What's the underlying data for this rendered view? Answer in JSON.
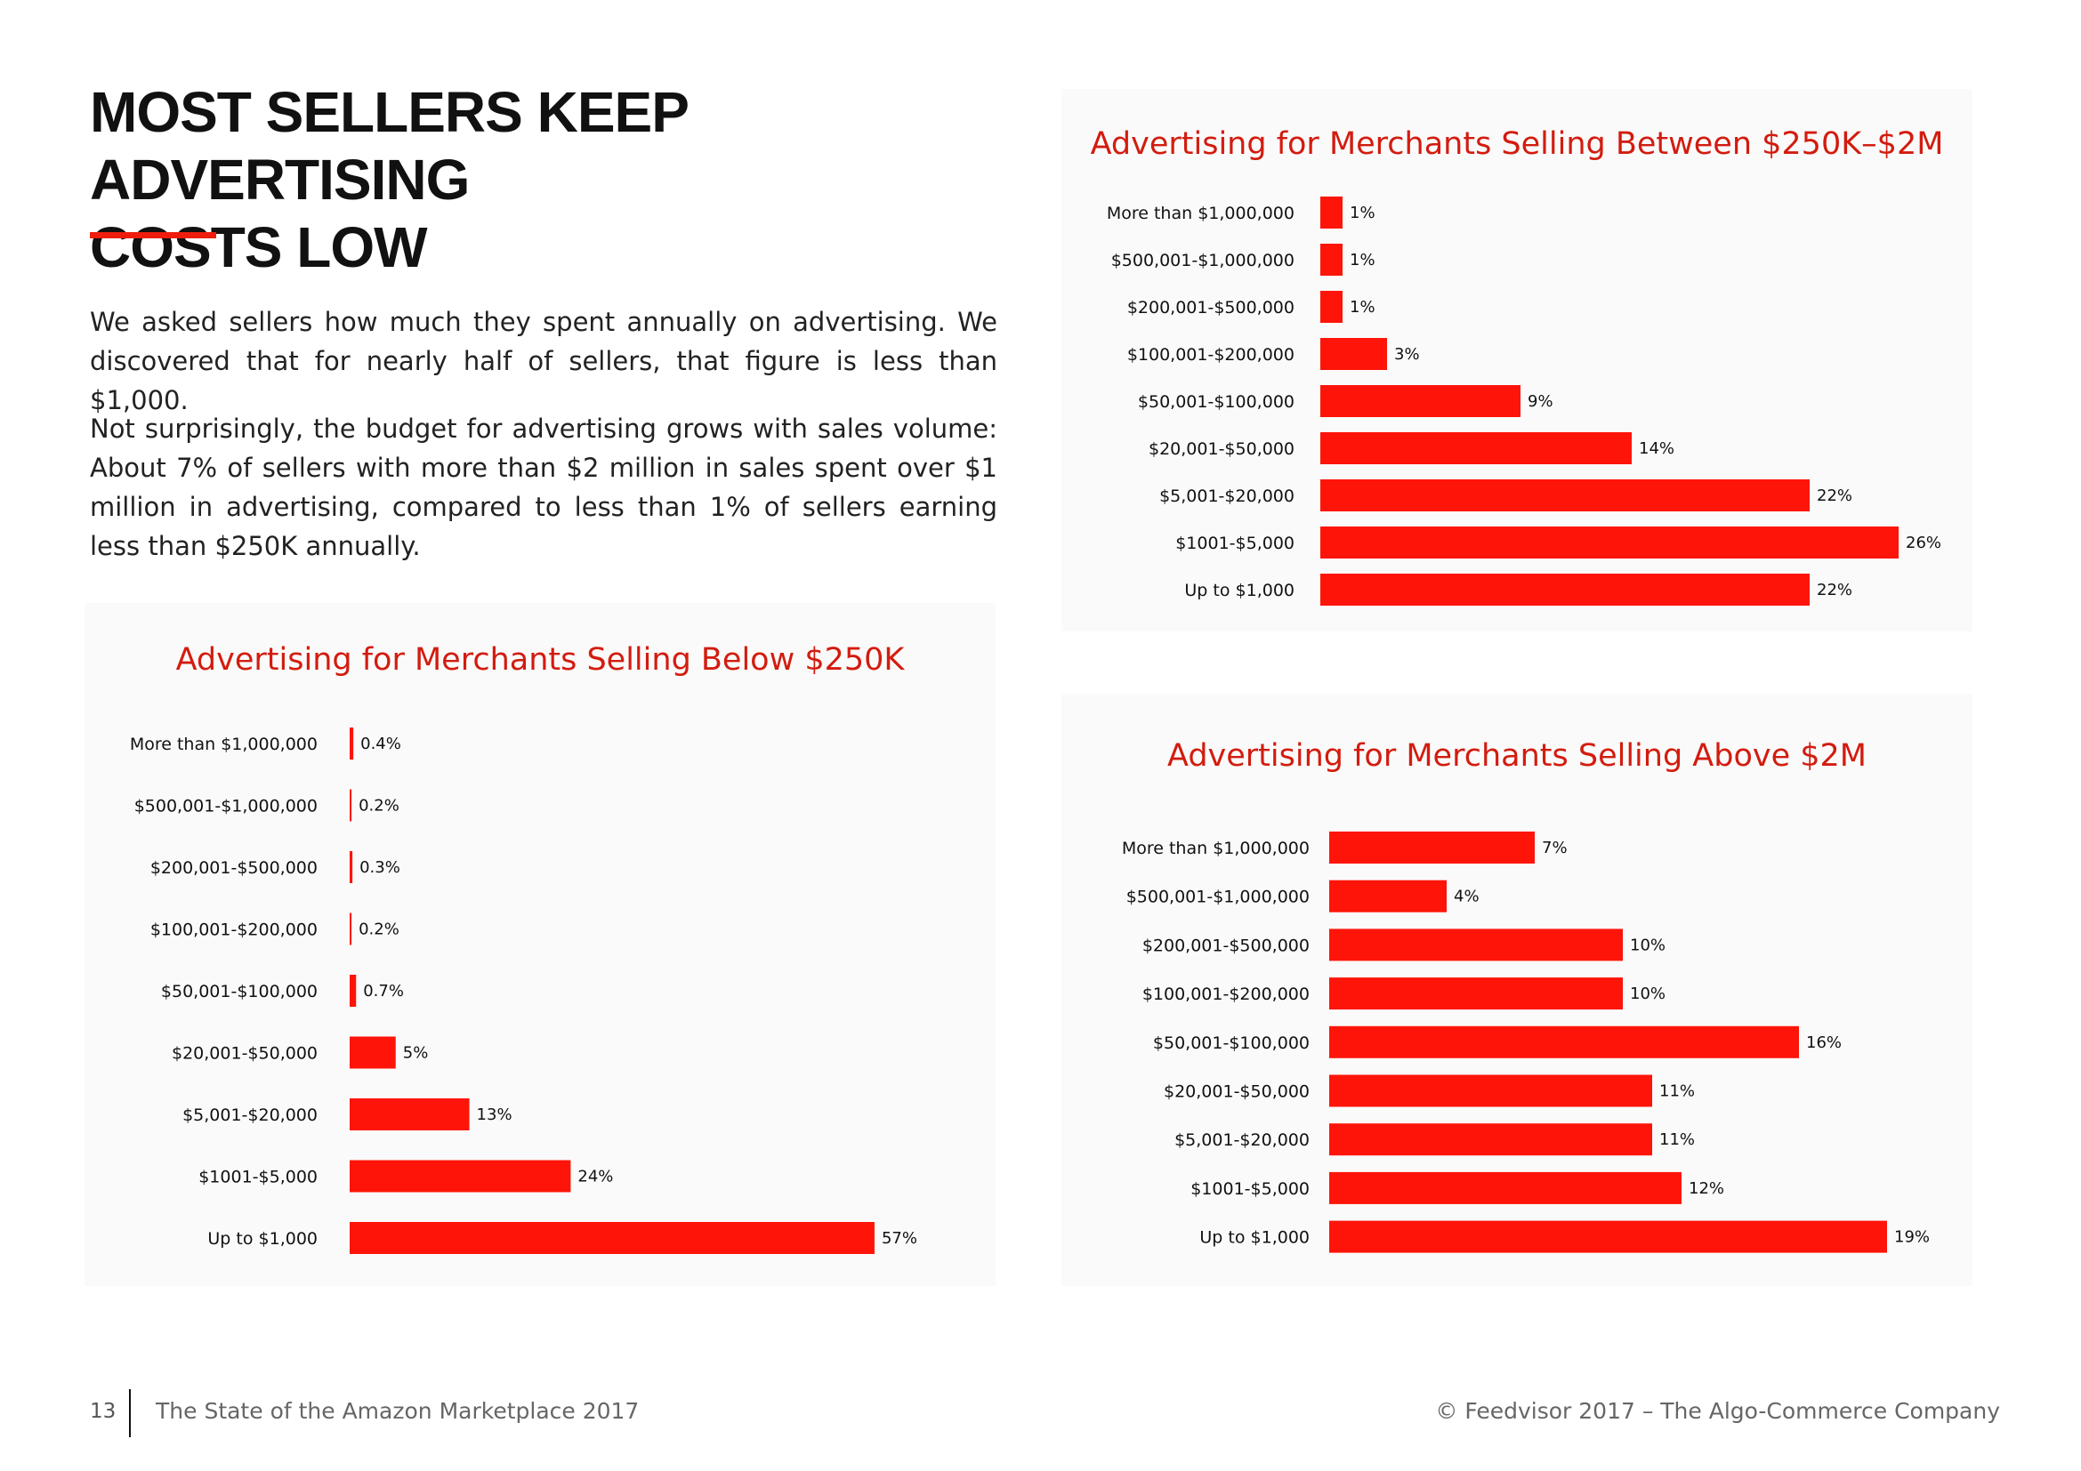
{
  "heading": {
    "line1": "MOST SELLERS KEEP ADVERTISING",
    "line2": "COSTS LOW"
  },
  "body": {
    "paragraph1": "We asked sellers how much they spent annually on advertising. We discovered that for nearly half of sellers, that figure is less than $1,000.",
    "paragraph2": "Not surprisingly, the budget for advertising grows with sales volume: About 7% of sellers with more than $2 million in sales spent over $1 million in advertising, compared to less than 1% of sellers earning less than $250K annually."
  },
  "colors": {
    "accent": "#ee1d0e",
    "bar": "#fe1409",
    "chart_title": "#d21c0f"
  },
  "chart_data": [
    {
      "id": "below",
      "type": "bar",
      "orientation": "horizontal",
      "title": "Advertising for Merchants Selling Below $250K",
      "categories": [
        "More than $1,000,000",
        "$500,001-$1,000,000",
        "$200,001-$500,000",
        "$100,001-$200,000",
        "$50,001-$100,000",
        "$20,001-$50,000",
        "$5,001-$20,000",
        "$1001-$5,000",
        "Up to $1,000"
      ],
      "values": [
        0.4,
        0.2,
        0.3,
        0.2,
        0.7,
        5,
        13,
        24,
        57
      ],
      "value_labels": [
        "0.4%",
        "0.2%",
        "0.3%",
        "0.2%",
        "0.7%",
        "5%",
        "13%",
        "24%",
        "57%"
      ]
    },
    {
      "id": "between",
      "type": "bar",
      "orientation": "horizontal",
      "title": "Advertising for Merchants Selling Between $250K–$2M",
      "categories": [
        "More than $1,000,000",
        "$500,001-$1,000,000",
        "$200,001-$500,000",
        "$100,001-$200,000",
        "$50,001-$100,000",
        "$20,001-$50,000",
        "$5,001-$20,000",
        "$1001-$5,000",
        "Up to $1,000"
      ],
      "values": [
        1,
        1,
        1,
        3,
        9,
        14,
        22,
        26,
        22
      ],
      "value_labels": [
        "1%",
        "1%",
        "1%",
        "3%",
        "9%",
        "14%",
        "22%",
        "26%",
        "22%"
      ]
    },
    {
      "id": "above",
      "type": "bar",
      "orientation": "horizontal",
      "title": "Advertising for Merchants Selling Above $2M",
      "categories": [
        "More than $1,000,000",
        "$500,001-$1,000,000",
        "$200,001-$500,000",
        "$100,001-$200,000",
        "$50,001-$100,000",
        "$20,001-$50,000",
        "$5,001-$20,000",
        "$1001-$5,000",
        "Up to $1,000"
      ],
      "values": [
        7,
        4,
        10,
        10,
        16,
        11,
        11,
        12,
        19
      ],
      "value_labels": [
        "7%",
        "4%",
        "10%",
        "10%",
        "16%",
        "11%",
        "11%",
        "12%",
        "19%"
      ]
    }
  ],
  "footer": {
    "page_number": "13",
    "document_title": "The State of the Amazon Marketplace 2017",
    "copyright": "© Feedvisor 2017 – The Algo-Commerce Company"
  }
}
